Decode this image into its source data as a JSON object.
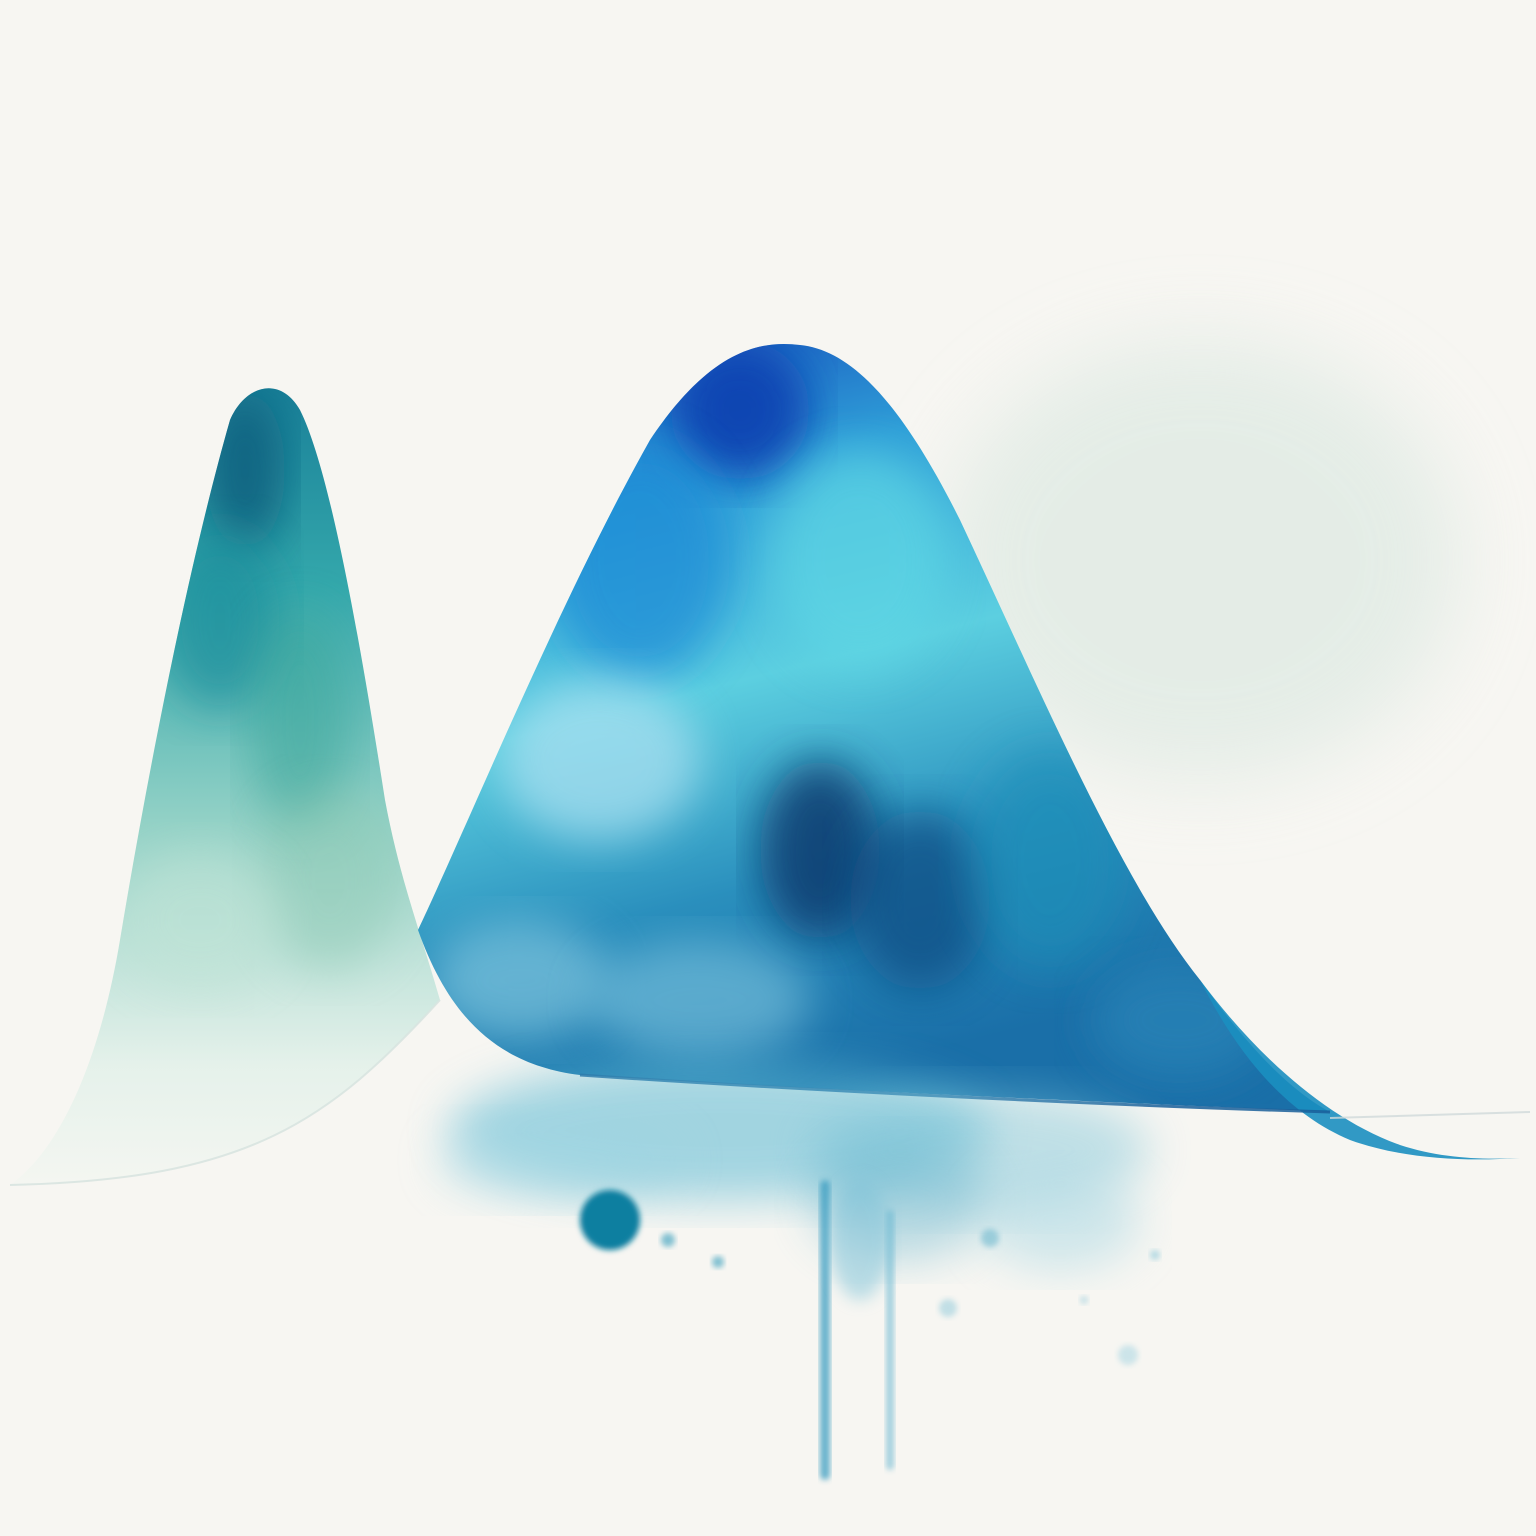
{
  "artwork": {
    "paper_color": "#f7f6f2",
    "palette": {
      "deep_blue": "#1446b4",
      "navy": "#0b3a6e",
      "teal": "#1aa3c4",
      "cyan": "#5fd3e6",
      "pale_aqua": "#bfe6ea",
      "sea_green": "#7cc9b8",
      "mint_wash": "#dfeee6"
    },
    "shapes": [
      {
        "name": "left-peak",
        "description_colors": [
          "teal",
          "sea_green",
          "mint_wash"
        ]
      },
      {
        "name": "right-peak",
        "description_colors": [
          "deep_blue",
          "teal",
          "cyan",
          "navy"
        ]
      }
    ]
  }
}
